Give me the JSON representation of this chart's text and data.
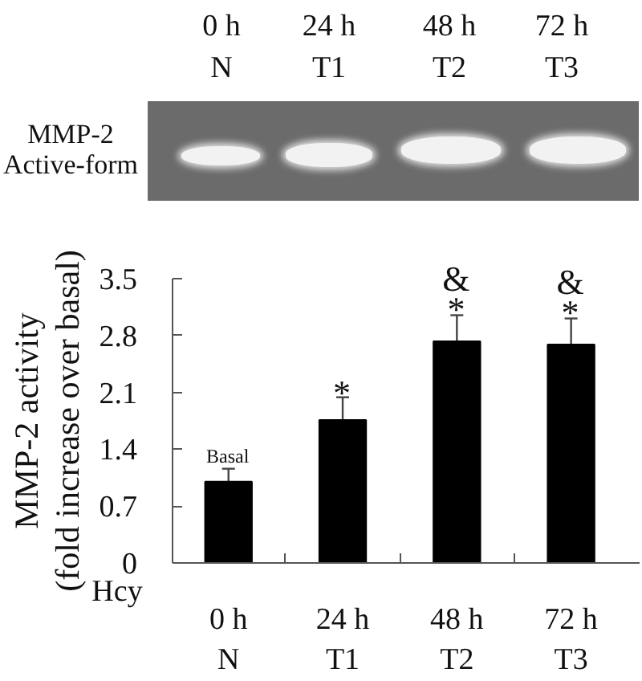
{
  "chart_data": {
    "type": "bar",
    "categories": [
      "0 h\nN",
      "24 h\nT1",
      "48 h\nT2",
      "72 h\nT3"
    ],
    "values": [
      1.0,
      1.76,
      2.73,
      2.69
    ],
    "color": "#000000",
    "errors": [
      [
        1.0,
        1.16
      ],
      [
        1.76,
        2.04
      ],
      [
        2.73,
        3.05
      ],
      [
        2.69,
        3.01
      ]
    ],
    "ylabel": "MMP-2 activity\n(fold increase over basal)",
    "ylim": [
      0,
      3.5
    ],
    "yticks": [
      0,
      0.7,
      1.4,
      2.1,
      2.8,
      3.5
    ],
    "annotations": [
      "MMP-2\nActive-form",
      "Hcy",
      {
        "text": "Basal",
        "x": "0 h\nN",
        "y": 1.16
      },
      {
        "text": "*",
        "x": "24 h\nT1",
        "y": 2.04
      },
      {
        "text": "&\n*",
        "x": "48 h\nT2",
        "y": 3.05
      },
      {
        "text": "&\n*",
        "x": "72 h\nT3",
        "y": 3.01
      }
    ]
  }
}
